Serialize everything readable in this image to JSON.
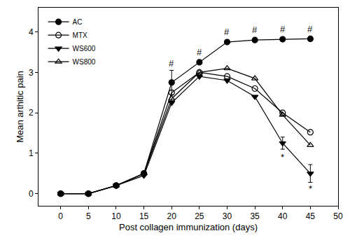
{
  "chart_data": {
    "type": "line",
    "x_label": "Post collagen immunization (days)",
    "y_label": "Mean arthitic pain",
    "x": [
      0,
      5,
      10,
      15,
      20,
      25,
      30,
      35,
      40,
      45
    ],
    "series": [
      {
        "name": "AC",
        "color": "#000000",
        "marker": "circle",
        "line_style": "solid",
        "values": [
          0,
          0,
          0.2,
          0.5,
          2.75,
          3.25,
          3.75,
          3.8,
          3.82,
          3.83
        ],
        "errors": [
          null,
          null,
          null,
          null,
          0.3,
          null,
          null,
          null,
          null,
          null
        ]
      },
      {
        "name": "MTX",
        "color": "#000000",
        "marker": "circle-open",
        "line_style": "solid",
        "values": [
          0,
          0,
          0.2,
          0.5,
          2.5,
          3.0,
          2.9,
          2.6,
          2.0,
          1.52
        ],
        "errors": [
          null,
          null,
          null,
          null,
          null,
          null,
          null,
          null,
          null,
          null
        ]
      },
      {
        "name": "WS600",
        "color": "#000000",
        "marker": "triangle-down",
        "line_style": "solid",
        "values": [
          0,
          0,
          0.2,
          0.45,
          2.25,
          2.9,
          2.8,
          2.4,
          1.25,
          0.5
        ],
        "errors": [
          null,
          null,
          null,
          null,
          null,
          null,
          null,
          null,
          0.15,
          0.22
        ]
      },
      {
        "name": "WS800",
        "color": "#000000",
        "marker": "triangle-up-open",
        "line_style": "solid",
        "values": [
          0,
          0,
          0.2,
          0.5,
          2.35,
          3.0,
          3.1,
          2.85,
          1.95,
          1.2
        ],
        "errors": [
          null,
          null,
          null,
          null,
          null,
          null,
          null,
          null,
          null,
          null
        ]
      }
    ],
    "annotations": [
      {
        "text": "#",
        "x": 20,
        "y": 3.22
      },
      {
        "text": "#",
        "x": 25,
        "y": 3.5
      },
      {
        "text": "#",
        "x": 30,
        "y": 4.0
      },
      {
        "text": "#",
        "x": 35,
        "y": 4.05
      },
      {
        "text": "#",
        "x": 40,
        "y": 4.07
      },
      {
        "text": "#",
        "x": 45,
        "y": 4.08
      },
      {
        "text": "*",
        "x": 40,
        "y": 0.9
      },
      {
        "text": "*",
        "x": 45,
        "y": 0.13
      }
    ],
    "xlim": [
      -4,
      50
    ],
    "xticks": [
      0,
      5,
      10,
      15,
      20,
      25,
      30,
      35,
      40,
      45,
      50
    ],
    "ylim": [
      -0.3,
      4.6
    ],
    "yticks": [
      0,
      1,
      2,
      3,
      4
    ],
    "grid": false,
    "legend": "top left"
  }
}
